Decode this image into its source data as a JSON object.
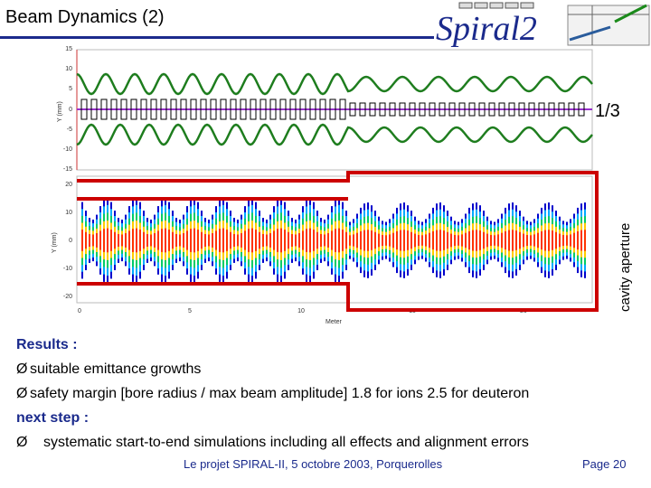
{
  "title": "Beam Dynamics (2)",
  "logo": {
    "text": "Spiral2"
  },
  "top_plot": {
    "ylabel": "Y (mm)",
    "yticks": [
      "15",
      "10",
      "5",
      "0",
      "-5",
      "-10",
      "-15"
    ]
  },
  "bottom_plot": {
    "ylabel": "Y (mm)",
    "yticks": [
      "20",
      "10",
      "0",
      "-10",
      "-20"
    ],
    "xticks": [
      "0",
      "5",
      "10",
      "15",
      "20"
    ],
    "xlabel": "Meter"
  },
  "ratio_label": "1/3",
  "cavity_label": "cavity aperture",
  "results": {
    "heading": "Results :",
    "items": [
      "suitable emittance growths",
      "safety margin [bore radius / max beam amplitude] 1.8 for ions 2.5 for deuteron"
    ],
    "next_heading": "next step :",
    "next_items": [
      "systematic start-to-end simulations including all effects and alignment errors"
    ]
  },
  "footer": "Le projet SPIRAL-II, 5 octobre 2003, Porquerolles",
  "page": "Page 20",
  "colors": {
    "title_rule": "#1b2a8c",
    "envelope": "#1e7d1e",
    "aperture": "#cc0000",
    "axis": "#cc3333",
    "accent": "#9932cc"
  }
}
